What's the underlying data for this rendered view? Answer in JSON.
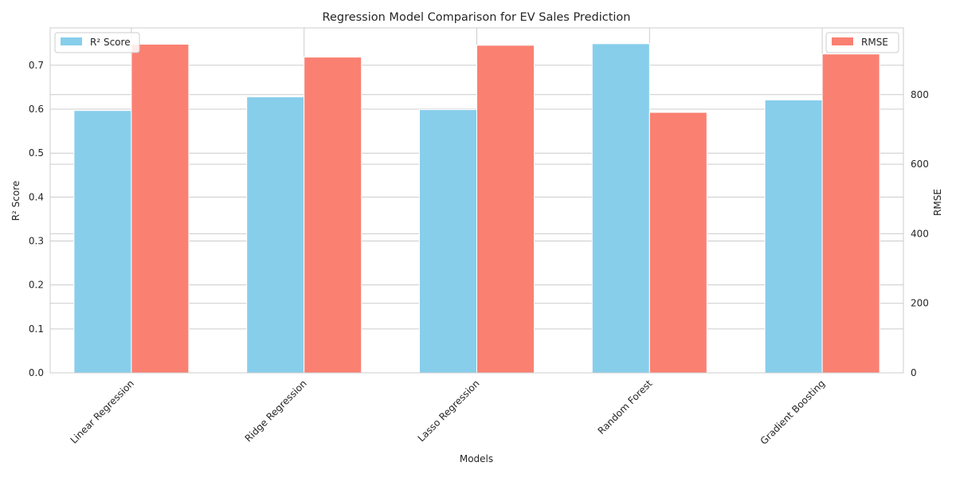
{
  "chart_data": {
    "type": "bar",
    "title": "Regression Model Comparison for EV Sales Prediction",
    "xlabel": "Models",
    "categories": [
      "Linear Regression",
      "Ridge Regression",
      "Lasso Regression",
      "Random Forest",
      "Gradient Boosting"
    ],
    "series": [
      {
        "name": "R² Score",
        "axis": "left",
        "ylabel": "R² Score",
        "color": "#87CEEB",
        "values": [
          0.597,
          0.628,
          0.599,
          0.749,
          0.621
        ],
        "ylim": [
          0,
          0.785
        ],
        "ticks": [
          0.0,
          0.1,
          0.2,
          0.3,
          0.4,
          0.5,
          0.6,
          0.7
        ],
        "tick_labels": [
          "0.0",
          "0.1",
          "0.2",
          "0.3",
          "0.4",
          "0.5",
          "0.6",
          "0.7"
        ]
      },
      {
        "name": "RMSE",
        "axis": "right",
        "ylabel": "RMSE",
        "color": "#FA8072",
        "values": [
          945,
          908,
          942,
          749,
          917
        ],
        "ylim": [
          0,
          992
        ],
        "ticks": [
          0,
          200,
          400,
          600,
          800
        ],
        "tick_labels": [
          "0",
          "200",
          "400",
          "600",
          "800"
        ]
      }
    ],
    "legend": [
      {
        "label": "R² Score",
        "placement": "top-left"
      },
      {
        "label": "RMSE",
        "placement": "top-right"
      }
    ],
    "grid": true,
    "x_tick_rotation": 45
  }
}
